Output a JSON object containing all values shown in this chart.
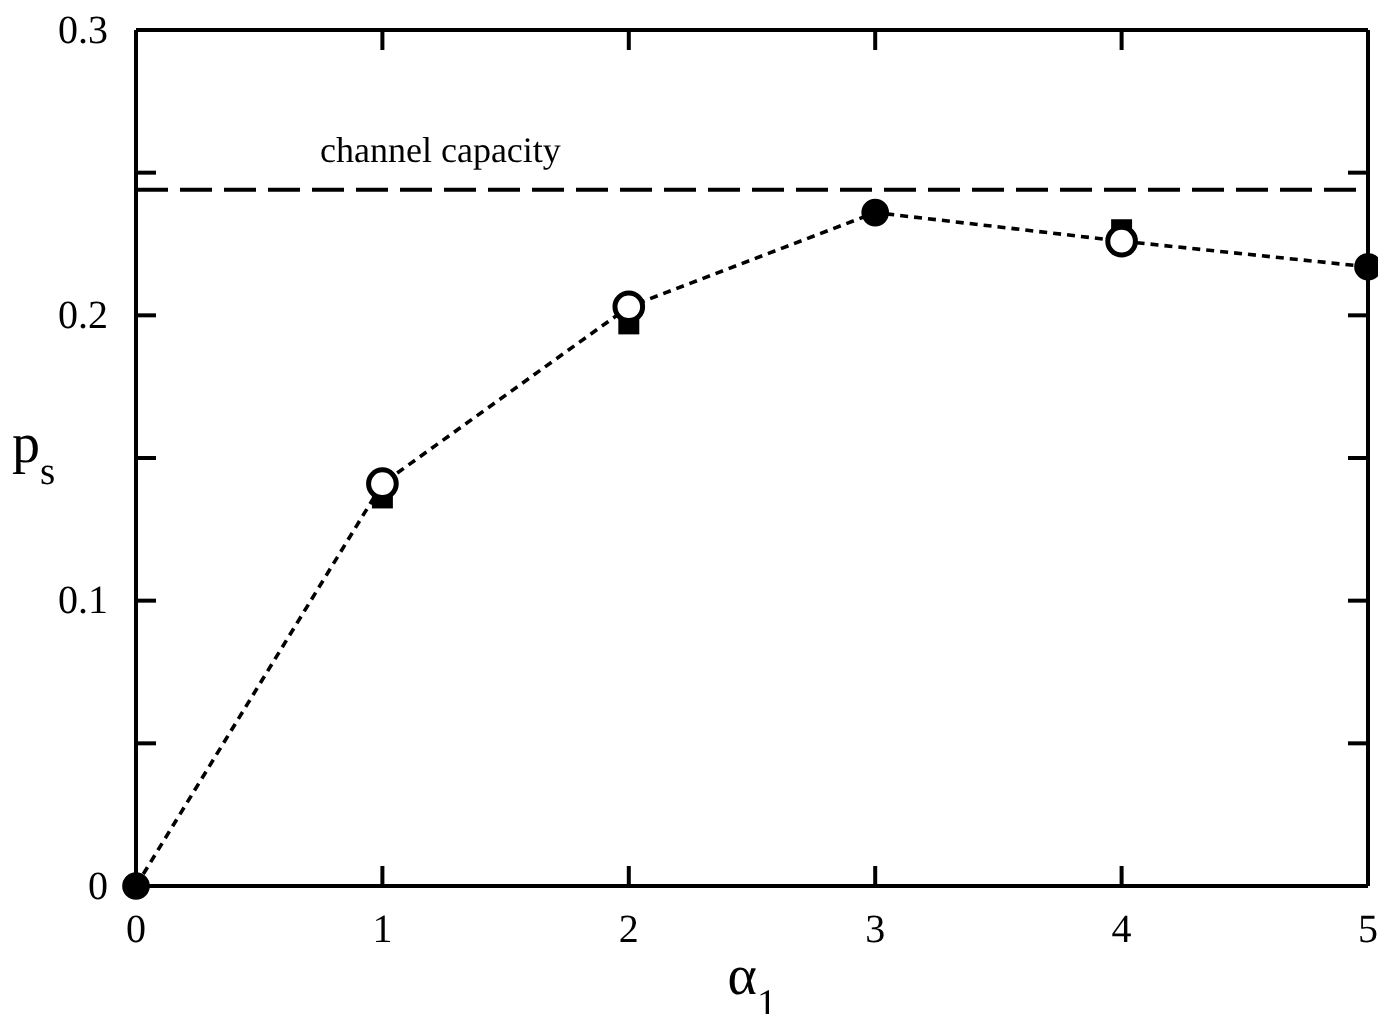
{
  "chart_data": {
    "type": "scatter",
    "xlabel": "α$_{1}$",
    "ylabel": "p$_{s}$",
    "xlim": [
      0,
      5
    ],
    "ylim": [
      0,
      0.3
    ],
    "xticks": [
      0,
      1,
      2,
      3,
      4,
      5
    ],
    "yticks": [
      0,
      {
        "value": 0.05,
        "label": null
      },
      {
        "value": 0.1,
        "label": "0.1"
      },
      {
        "value": 0.15,
        "label": null
      },
      {
        "value": 0.2,
        "label": "0.2"
      },
      {
        "value": 0.25,
        "label": null
      },
      {
        "value": 0.3,
        "label": "0.3"
      }
    ],
    "grid": false,
    "ref_lines": [
      {
        "axis": "y",
        "value": 0.244,
        "label": "channel capacity",
        "color": "#000000",
        "line_style": "dashed"
      }
    ],
    "series": [
      {
        "type": "line",
        "color": "#000000",
        "marker": "none",
        "line_style": "dotted",
        "x": [
          0,
          1,
          2,
          3,
          4,
          5
        ],
        "values": [
          0,
          0.141,
          0.203,
          0.236,
          0.226,
          0.217
        ]
      },
      {
        "color": "#000000",
        "marker": "square",
        "x": [
          1,
          2,
          4
        ],
        "values": [
          0.136,
          0.197,
          0.23
        ]
      },
      {
        "color": "#ffffff",
        "marker": "circle",
        "x": [
          1,
          2,
          4
        ],
        "values": [
          0.141,
          0.203,
          0.226
        ]
      },
      {
        "color": "#000000",
        "marker": "circle",
        "x": [
          0,
          3,
          5
        ],
        "values": [
          0,
          0.236,
          0.217
        ]
      }
    ]
  }
}
